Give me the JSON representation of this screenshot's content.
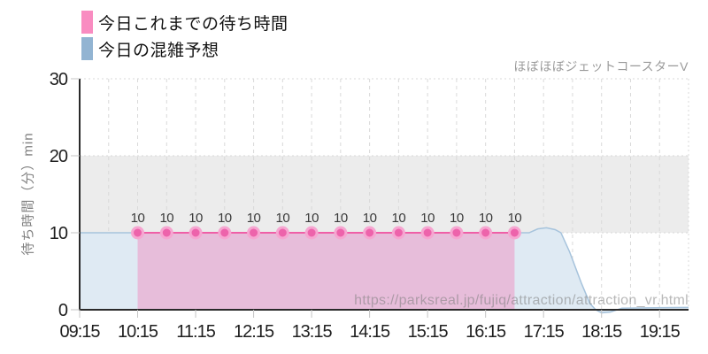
{
  "watermark": "https://parksreal.jp/fujiq/attraction/attraction_vr.html",
  "chart_data": {
    "type": "area",
    "title": "ほぼほぼジェットコースターV",
    "ylabel": "待ち時間（分）min",
    "ylim": [
      0,
      30
    ],
    "yticks": [
      0,
      10,
      20,
      30
    ],
    "xlim_hours": [
      9.25,
      19.75
    ],
    "xticks": [
      {
        "label": "09:15",
        "hour": 9.25
      },
      {
        "label": "10:15",
        "hour": 10.25
      },
      {
        "label": "11:15",
        "hour": 11.25
      },
      {
        "label": "12:15",
        "hour": 12.25
      },
      {
        "label": "13:15",
        "hour": 13.25
      },
      {
        "label": "14:15",
        "hour": 14.25
      },
      {
        "label": "15:15",
        "hour": 15.25
      },
      {
        "label": "16:15",
        "hour": 16.25
      },
      {
        "label": "17:15",
        "hour": 17.25
      },
      {
        "label": "18:15",
        "hour": 18.25
      },
      {
        "label": "19:15",
        "hour": 19.25
      }
    ],
    "grid": {
      "h_style": "dotted",
      "v_style": "dashed",
      "v_interval_hours": 0.5
    },
    "band": {
      "from": 10,
      "to": 20,
      "color": "#ececec"
    },
    "colors": {
      "grid": "#d9d9d9",
      "axis": "#2a2a2a",
      "tick": "#c4c4c4",
      "tick_label": "#1f1f1f",
      "point_label": "#3a3a3a"
    },
    "legend_position": "top-left",
    "series": [
      {
        "name": "今日これまでの待ち時間",
        "type": "area-points",
        "legend_color": "#f98cc1",
        "line_color": "#ef5fa7",
        "fill_color": "rgba(244,115,180,0.38)",
        "point_color": "#ed63ab",
        "point_ring_color": "#f6a6d1",
        "x": [
          10.25,
          10.75,
          11.25,
          11.75,
          12.25,
          12.75,
          13.25,
          13.75,
          14.25,
          14.75,
          15.25,
          15.75,
          16.25,
          16.75
        ],
        "y": [
          10,
          10,
          10,
          10,
          10,
          10,
          10,
          10,
          10,
          10,
          10,
          10,
          10,
          10
        ],
        "point_labels": [
          "10",
          "10",
          "10",
          "10",
          "10",
          "10",
          "10",
          "10",
          "10",
          "10",
          "10",
          "10",
          "10",
          "10"
        ]
      },
      {
        "name": "今日の混雑予想",
        "type": "area",
        "legend_color": "#92b4d2",
        "line_color": "#a6c3dc",
        "fill_color": "#dfeaf3",
        "x": [
          9.25,
          17.0,
          17.15,
          17.3,
          17.45,
          17.55,
          17.7,
          17.9,
          18.05,
          18.15,
          18.25,
          18.4,
          18.6,
          19.0,
          19.75
        ],
        "y": [
          10,
          10,
          10.5,
          10.65,
          10.4,
          10,
          7.5,
          3.5,
          0.8,
          0,
          -0.4,
          -0.3,
          0.2,
          0.25,
          0.3
        ]
      }
    ]
  }
}
